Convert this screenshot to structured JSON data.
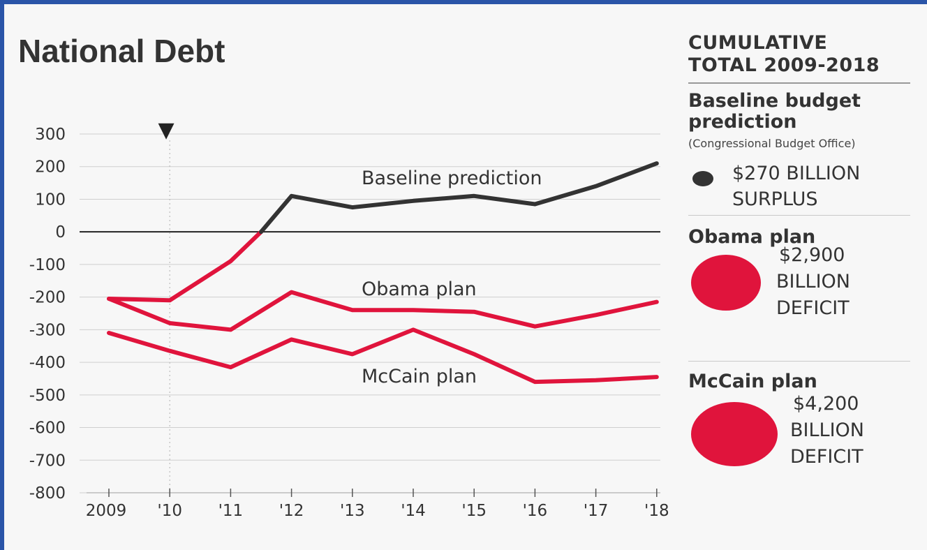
{
  "title": "National Debt",
  "chart_data": {
    "type": "line",
    "x": [
      "2009",
      "'10",
      "'11",
      "'12",
      "'13",
      "'14",
      "'15",
      "'16",
      "'17",
      "'18"
    ],
    "ylim": [
      -800,
      300
    ],
    "yticks": [
      "300",
      "200",
      "100",
      "0",
      "-100",
      "-200",
      "-300",
      "-400",
      "-500",
      "-600",
      "-700",
      "-800"
    ],
    "marker": "▼",
    "series": [
      {
        "name": "Baseline prediction",
        "points": [
          [
            0.0,
            -205
          ],
          [
            1.0,
            -210
          ],
          [
            2.0,
            -90
          ],
          [
            2.5,
            0
          ],
          [
            3.0,
            110
          ],
          [
            4.0,
            75
          ],
          [
            5.0,
            95
          ],
          [
            6.0,
            110
          ],
          [
            7.0,
            85
          ],
          [
            8.0,
            140
          ],
          [
            9.0,
            210
          ]
        ],
        "color": "#333333",
        "neg_color": "#e0143c"
      },
      {
        "name": "Obama plan",
        "points": [
          [
            0.0,
            -205
          ],
          [
            1.0,
            -280
          ],
          [
            2.0,
            -300
          ],
          [
            3.0,
            -185
          ],
          [
            4.0,
            -240
          ],
          [
            5.0,
            -240
          ],
          [
            6.0,
            -245
          ],
          [
            7.0,
            -290
          ],
          [
            8.0,
            -255
          ],
          [
            9.0,
            -215
          ]
        ],
        "color": "#e0143c"
      },
      {
        "name": "McCain plan",
        "points": [
          [
            0.0,
            -310
          ],
          [
            1.0,
            -365
          ],
          [
            2.0,
            -415
          ],
          [
            3.0,
            -330
          ],
          [
            4.0,
            -375
          ],
          [
            5.0,
            -300
          ],
          [
            6.0,
            -375
          ],
          [
            7.0,
            -460
          ],
          [
            8.0,
            -455
          ],
          [
            9.0,
            -445
          ]
        ],
        "color": "#e0143c"
      }
    ]
  },
  "side": {
    "heading_line1": "CUMULATIVE",
    "heading_line2": "TOTAL 2009-2018",
    "baseline": {
      "head_line1": "Baseline budget",
      "head_line2": "prediction",
      "source": "(Congressional Budget Office)",
      "amount_line1": "$270 BILLION",
      "amount_line2": "SURPLUS",
      "color": "#333333"
    },
    "obama": {
      "head": "Obama plan",
      "amount": "$2,900",
      "unit": "BILLION",
      "kind": "DEFICIT",
      "color": "#e0143c"
    },
    "mccain": {
      "head": "McCain plan",
      "amount": "$4,200",
      "unit": "BILLION",
      "kind": "DEFICIT",
      "color": "#e0143c"
    }
  }
}
